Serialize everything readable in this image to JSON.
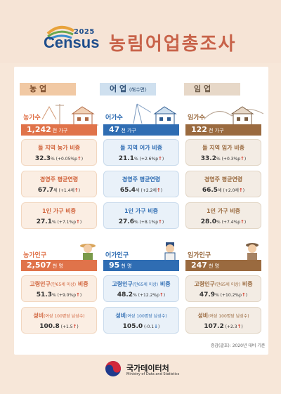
{
  "header": {
    "logo_year": "2025",
    "logo_word": "Census",
    "title": "농림어업총조사"
  },
  "sectors": {
    "farm": {
      "label": "농 업"
    },
    "fish": {
      "label": "어 업",
      "sub": "(해수면)"
    },
    "forest": {
      "label": "임 업"
    }
  },
  "households": {
    "farm": {
      "label": "농가수",
      "value": "1,242",
      "unit": "천 가구"
    },
    "fish": {
      "label": "어가수",
      "value": "47",
      "unit": "천 가구"
    },
    "forest": {
      "label": "임가수",
      "value": "122",
      "unit": "천 가구"
    }
  },
  "hh_cards": {
    "farm": [
      {
        "title": "돌 지역 농가 비중",
        "value": "32.3",
        "delta": "% (+0.05%p",
        "arrow": "↑",
        "end": ")"
      },
      {
        "title": "경영주 평균연령",
        "value": "67.7",
        "delta": "세 (+1.4세",
        "arrow": "↑",
        "end": ")"
      },
      {
        "title": "1인 가구 비중",
        "value": "27.1",
        "delta": "% (+7.1%p",
        "arrow": "↑",
        "end": ")"
      }
    ],
    "fish": [
      {
        "title": "돌 지역 어가 비중",
        "value": "21.1",
        "delta": "% (+2.6%p",
        "arrow": "↑",
        "end": ")"
      },
      {
        "title": "경영주 평균연령",
        "value": "65.4",
        "delta": "세 (+2.2세",
        "arrow": "↑",
        "end": ")"
      },
      {
        "title": "1인 가구 비중",
        "value": "27.6",
        "delta": "% (+8.1%p",
        "arrow": "↑",
        "end": ")"
      }
    ],
    "forest": [
      {
        "title": "돌 지역 임가 비중",
        "value": "33.2",
        "delta": "% (+0.3%p",
        "arrow": "↑",
        "end": ")"
      },
      {
        "title": "경영주 평균연령",
        "value": "66.5",
        "delta": "세 (+2.0세",
        "arrow": "↑",
        "end": ")"
      },
      {
        "title": "1인 가구 비중",
        "value": "28.0",
        "delta": "% (+7.4%p",
        "arrow": "↑",
        "end": ")"
      }
    ]
  },
  "population": {
    "farm": {
      "label": "농가인구",
      "value": "2,507",
      "unit": "천 명"
    },
    "fish": {
      "label": "어가인구",
      "value": "95",
      "unit": "천 명"
    },
    "forest": {
      "label": "임가인구",
      "value": "247",
      "unit": "천 명"
    }
  },
  "pop_cards": {
    "farm": [
      {
        "title": "고령인구",
        "small": "(만65세 이상)",
        "title2": " 비중",
        "value": "51.3",
        "delta": "% (+9.0%p",
        "arrow": "↑",
        "end": ")"
      },
      {
        "title": "성비",
        "small": "(여성 100명당 남성수)",
        "title2": "",
        "value": "100.8",
        "delta": " (+1.5",
        "arrow": "↑",
        "end": ")"
      }
    ],
    "fish": [
      {
        "title": "고령인구",
        "small": "(만65세 이상)",
        "title2": " 비중",
        "value": "48.2",
        "delta": "% (+12.2%p",
        "arrow": "↑",
        "end": ")"
      },
      {
        "title": "성비",
        "small": "(여성 100명당 남성수)",
        "title2": "",
        "value": "105.0",
        "delta": " (-0.1",
        "arrow": "↓",
        "end": ")"
      }
    ],
    "forest": [
      {
        "title": "고령인구",
        "small": "(만65세 이상)",
        "title2": " 비중",
        "value": "47.9",
        "delta": "% (+10.2%p",
        "arrow": "↑",
        "end": ")"
      },
      {
        "title": "성비",
        "small": "(여성 100명당 남성수)",
        "title2": "",
        "value": "107.2",
        "delta": " (+2.3",
        "arrow": "↑",
        "end": ")"
      }
    ]
  },
  "note": "증감(괄호): 2020년 대비 기준",
  "footer": {
    "agency": "국가데이터처",
    "agency_en": "Ministry of Data and Statistics"
  },
  "colors": {
    "farm": "#e0734a",
    "fish": "#2f6db3",
    "forest": "#9a6a3f",
    "title": "#c8634a"
  }
}
